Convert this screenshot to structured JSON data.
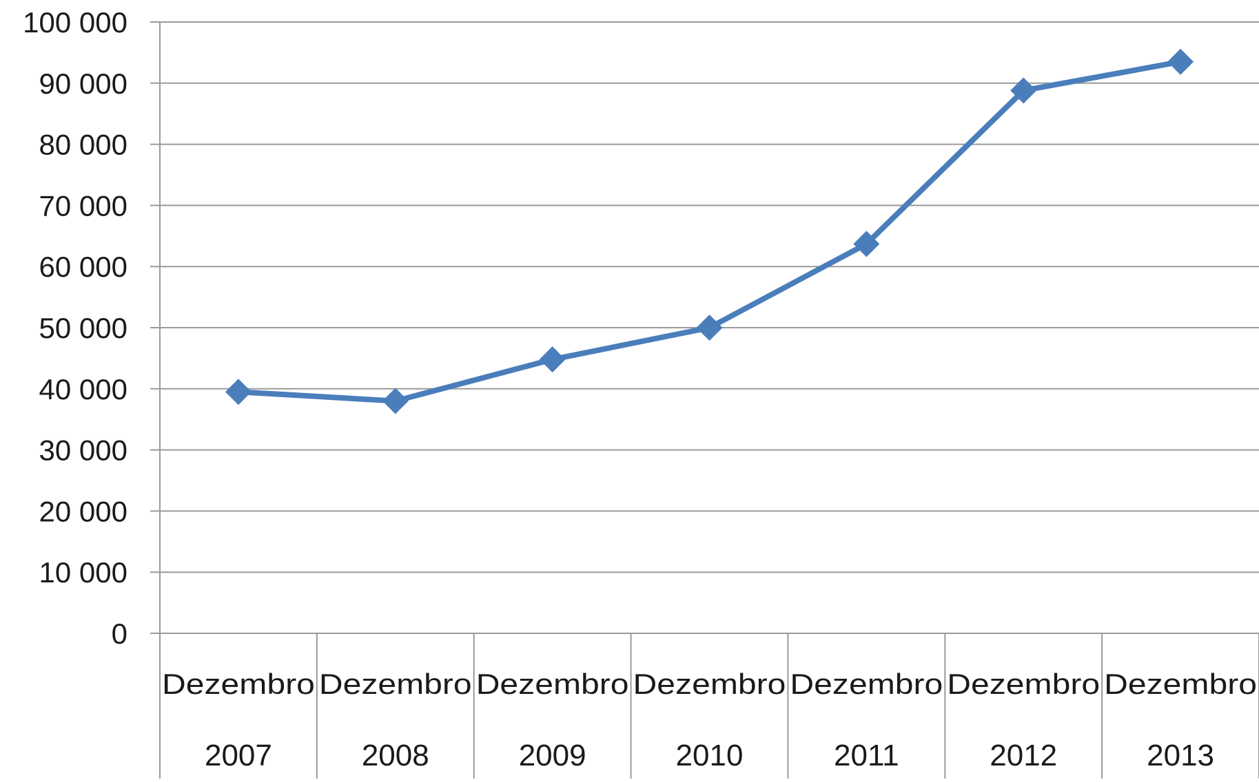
{
  "chart_data": {
    "type": "line",
    "title": "",
    "xlabel": "",
    "ylabel": "",
    "categories": [
      {
        "month": "Dezembro",
        "year": "2007"
      },
      {
        "month": "Dezembro",
        "year": "2008"
      },
      {
        "month": "Dezembro",
        "year": "2009"
      },
      {
        "month": "Dezembro",
        "year": "2010"
      },
      {
        "month": "Dezembro",
        "year": "2011"
      },
      {
        "month": "Dezembro",
        "year": "2012"
      },
      {
        "month": "Dezembro",
        "year": "2013"
      }
    ],
    "series": [
      {
        "values": [
          39500,
          38000,
          44800,
          50000,
          63700,
          88800,
          93500
        ],
        "color": "#4a7ebb",
        "marker": "diamond"
      }
    ],
    "ylim": [
      0,
      100000
    ],
    "yticks": [
      0,
      10000,
      20000,
      30000,
      40000,
      50000,
      60000,
      70000,
      80000,
      90000,
      100000
    ],
    "ytick_labels": [
      "0",
      "10 000",
      "20 000",
      "30 000",
      "40 000",
      "50 000",
      "60 000",
      "70 000",
      "80 000",
      "90 000",
      "100 000"
    ],
    "grid": true,
    "legend": "none"
  }
}
